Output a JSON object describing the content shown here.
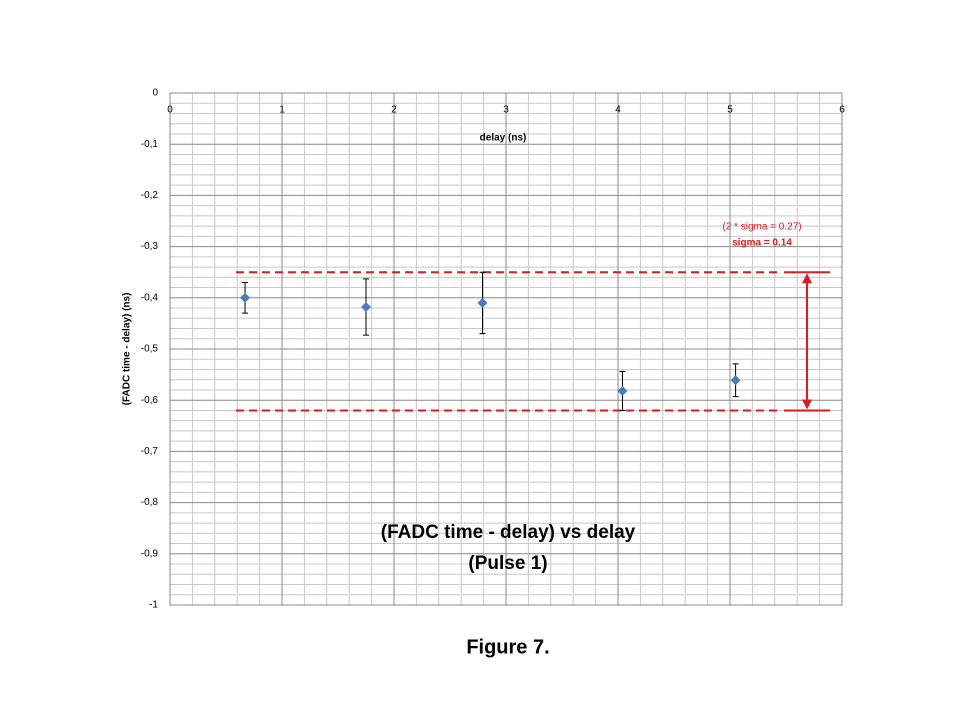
{
  "chart_data": {
    "type": "scatter",
    "title_lines": [
      "(FADC time - delay) vs delay",
      "(Pulse 1)"
    ],
    "xlabel": "delay (ns)",
    "ylabel": "(FADC time - delay) (ns)",
    "xlim": [
      0,
      6
    ],
    "xticks": [
      0,
      1,
      2,
      3,
      4,
      5,
      6
    ],
    "ylim": [
      -1,
      0
    ],
    "yticks": [
      0,
      {
        "value": -0.1,
        "label": "-0,1"
      },
      {
        "value": -0.2,
        "label": "-0,2"
      },
      {
        "value": -0.3,
        "label": "-0,3"
      },
      {
        "value": -0.4,
        "label": "-0,4"
      },
      {
        "value": -0.5,
        "label": "-0,5"
      },
      {
        "value": -0.6,
        "label": "-0,6"
      },
      {
        "value": -0.7,
        "label": "-0,7"
      },
      {
        "value": -0.8,
        "label": "-0,8"
      },
      {
        "value": -0.9,
        "label": "-0,9"
      },
      -1
    ],
    "grid": true,
    "minor_grid": true,
    "series": [
      {
        "color": "#4a7ebb",
        "x": [
          0.67,
          1.75,
          2.79,
          4.04,
          5.05
        ],
        "values": [
          -0.4,
          -0.418,
          -0.41,
          -0.582,
          -0.561
        ],
        "errors": [
          0.03,
          0.055,
          0.06,
          0.038,
          0.032
        ]
      }
    ],
    "reference_lines": {
      "color": "#e31a1c",
      "values": [
        -0.35,
        -0.62
      ]
    },
    "annotations": [
      "(2 * sigma = 0.27)",
      "sigma = 0.14"
    ]
  },
  "caption": "Figure 7."
}
